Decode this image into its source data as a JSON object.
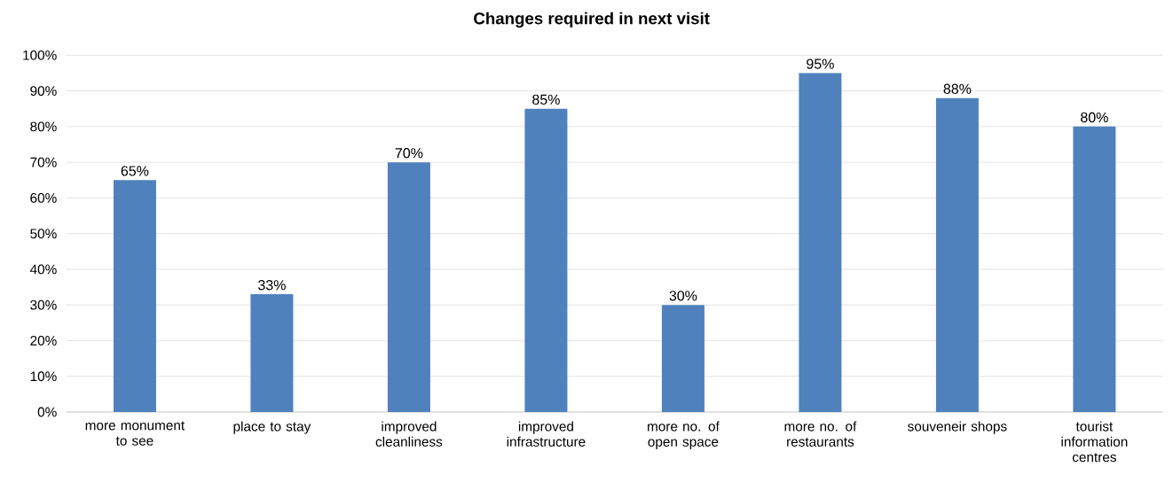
{
  "chart_data": {
    "type": "bar",
    "title": "Changes required in next visit",
    "categories": [
      "more monument to see",
      "place to stay",
      "improved cleanliness",
      "improved infrastructure",
      "more no. of open space",
      "more no. of restaurants",
      "souveneir shops",
      "tourist information centres"
    ],
    "values": [
      65,
      33,
      70,
      85,
      30,
      95,
      88,
      80
    ],
    "value_labels": [
      "65%",
      "33%",
      "70%",
      "85%",
      "30%",
      "95%",
      "88%",
      "80%"
    ],
    "color": "#4f81bd",
    "ylim": [
      0,
      100
    ],
    "yticks": [
      {
        "value": 0,
        "label": "0%"
      },
      {
        "value": 10,
        "label": "10%"
      },
      {
        "value": 20,
        "label": "20%"
      },
      {
        "value": 30,
        "label": "30%"
      },
      {
        "value": 40,
        "label": "40%"
      },
      {
        "value": 50,
        "label": "50%"
      },
      {
        "value": 60,
        "label": "60%"
      },
      {
        "value": 70,
        "label": "70%"
      },
      {
        "value": 80,
        "label": "80%"
      },
      {
        "value": 90,
        "label": "90%"
      },
      {
        "value": 100,
        "label": "100%"
      }
    ],
    "grid": "y"
  }
}
